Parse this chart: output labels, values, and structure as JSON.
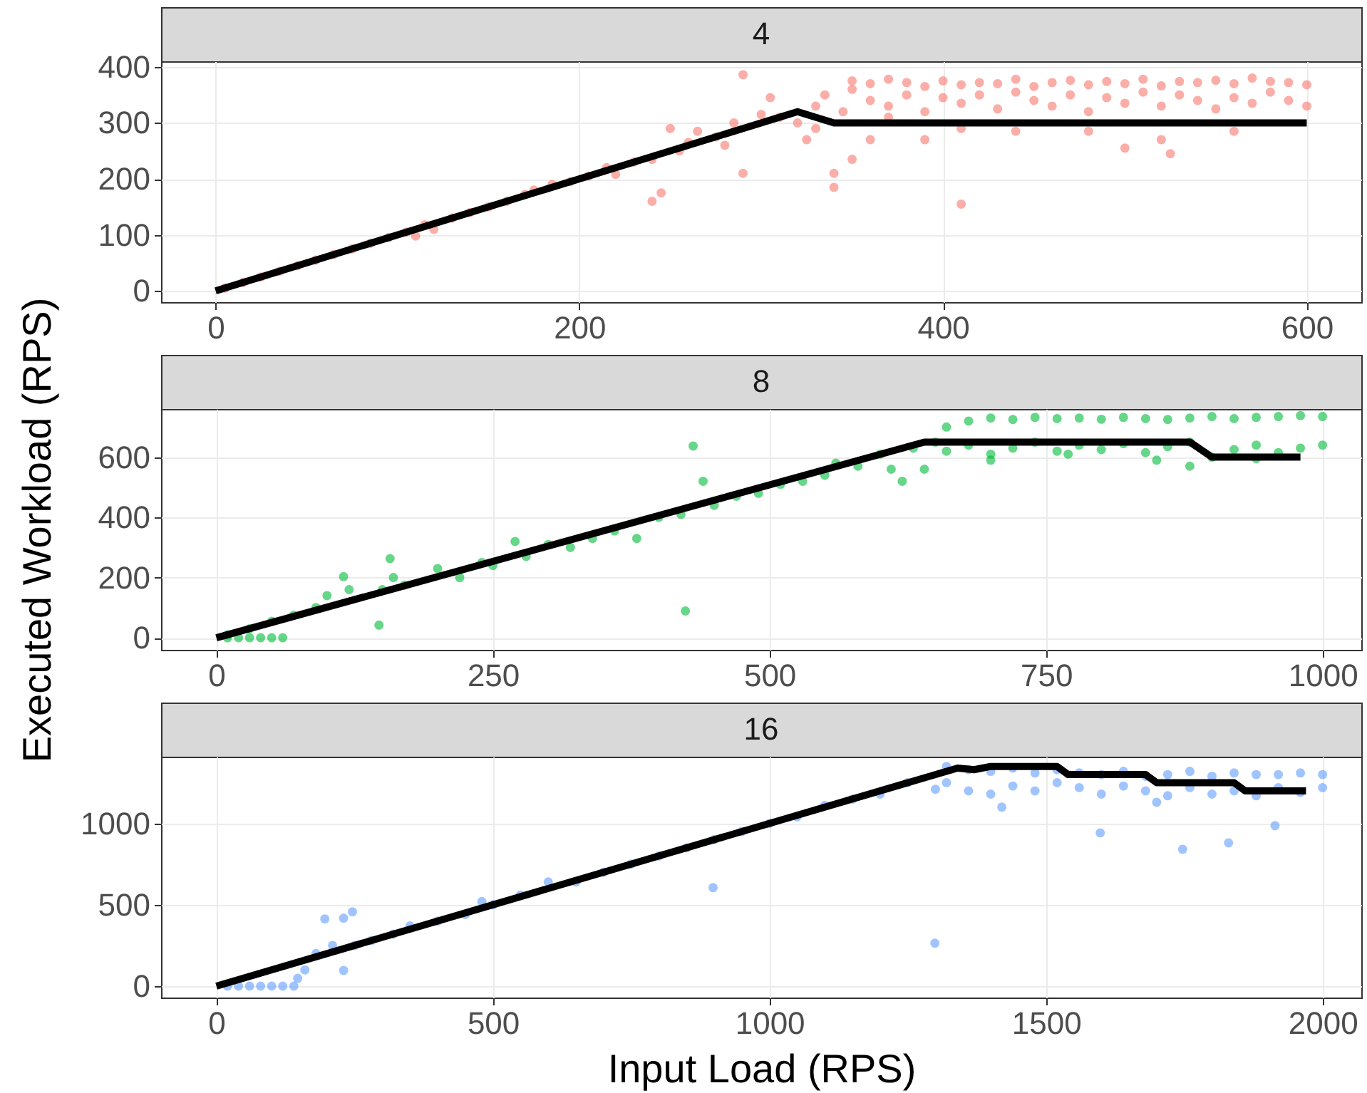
{
  "chart_data": [
    {
      "type": "scatter",
      "title": "4",
      "xlim": [
        -30,
        630
      ],
      "ylim": [
        -20,
        410
      ],
      "xticks": [
        0,
        200,
        400,
        600
      ],
      "yticks": [
        0,
        100,
        200,
        300,
        400
      ],
      "grid": true,
      "marker": "circle",
      "series": [
        {
          "type": "scatter",
          "color": "#f8766d",
          "x": [
            5,
            15,
            25,
            35,
            45,
            55,
            65,
            75,
            85,
            95,
            105,
            110,
            115,
            120,
            130,
            140,
            150,
            160,
            170,
            175,
            185,
            195,
            205,
            215,
            220,
            230,
            240,
            240,
            245,
            250,
            255,
            260,
            265,
            275,
            280,
            285,
            290,
            290,
            300,
            305,
            310,
            320,
            325,
            330,
            330,
            335,
            340,
            340,
            345,
            350,
            350,
            360,
            360,
            370,
            370,
            380,
            380,
            390,
            390,
            400,
            400,
            410,
            410,
            420,
            420,
            430,
            430,
            440,
            440,
            450,
            450,
            460,
            460,
            470,
            470,
            480,
            480,
            490,
            490,
            500,
            500,
            510,
            510,
            520,
            520,
            530,
            530,
            540,
            540,
            550,
            550,
            560,
            560,
            570,
            570,
            580,
            580,
            590,
            590,
            600,
            600,
            350,
            360,
            370,
            390,
            410,
            410,
            440,
            480,
            500,
            520,
            525,
            560
          ],
          "values": [
            5,
            15,
            25,
            35,
            45,
            55,
            65,
            75,
            85,
            95,
            105,
            98,
            118,
            110,
            130,
            140,
            150,
            160,
            172,
            180,
            190,
            195,
            205,
            220,
            208,
            230,
            235,
            160,
            175,
            290,
            250,
            265,
            285,
            275,
            260,
            300,
            386,
            210,
            315,
            345,
            310,
            300,
            270,
            330,
            290,
            350,
            210,
            185,
            320,
            360,
            375,
            340,
            370,
            330,
            378,
            350,
            372,
            320,
            365,
            345,
            375,
            335,
            368,
            350,
            372,
            325,
            370,
            355,
            378,
            340,
            365,
            330,
            372,
            350,
            376,
            320,
            368,
            345,
            374,
            335,
            370,
            355,
            378,
            330,
            366,
            350,
            374,
            340,
            372,
            325,
            376,
            345,
            370,
            335,
            380,
            355,
            374,
            340,
            372,
            330,
            368,
            235,
            270,
            310,
            270,
            155,
            290,
            285,
            285,
            255,
            270,
            245,
            285
          ]
        },
        {
          "type": "line",
          "color": "#000000",
          "marker": "none",
          "x": [
            0,
            320,
            340,
            600
          ],
          "values": [
            0,
            320,
            300,
            300
          ]
        }
      ]
    },
    {
      "type": "scatter",
      "title": "8",
      "ylabel": "Executed Workload (RPS)",
      "xlim": [
        -50,
        1035
      ],
      "ylim": [
        -40,
        760
      ],
      "xticks": [
        0,
        250,
        500,
        750,
        1000
      ],
      "yticks": [
        0,
        200,
        400,
        600
      ],
      "grid": true,
      "marker": "circle",
      "series": [
        {
          "type": "scatter",
          "color": "#00ba38",
          "x": [
            10,
            20,
            30,
            40,
            50,
            60,
            10,
            30,
            50,
            70,
            90,
            100,
            115,
            120,
            147,
            150,
            157,
            160,
            170,
            200,
            220,
            240,
            250,
            270,
            280,
            300,
            320,
            340,
            360,
            380,
            400,
            420,
            424,
            431,
            440,
            450,
            470,
            490,
            510,
            530,
            550,
            560,
            580,
            600,
            610,
            620,
            630,
            640,
            650,
            660,
            660,
            680,
            680,
            700,
            700,
            720,
            720,
            740,
            740,
            760,
            760,
            780,
            780,
            800,
            800,
            820,
            820,
            840,
            840,
            860,
            860,
            880,
            880,
            900,
            900,
            920,
            920,
            940,
            940,
            960,
            960,
            980,
            980,
            1000,
            1000,
            700,
            770,
            850,
            880,
            940
          ],
          "values": [
            0,
            0,
            0,
            0,
            0,
            0,
            10,
            30,
            55,
            75,
            100,
            140,
            203,
            160,
            42,
            160,
            263,
            200,
            175,
            230,
            200,
            250,
            240,
            320,
            270,
            310,
            300,
            330,
            355,
            330,
            400,
            410,
            89,
            637,
            520,
            440,
            470,
            480,
            510,
            520,
            540,
            580,
            570,
            610,
            560,
            520,
            630,
            560,
            650,
            620,
            700,
            640,
            720,
            610,
            730,
            630,
            725,
            650,
            732,
            620,
            728,
            640,
            730,
            625,
            726,
            645,
            732,
            615,
            728,
            635,
            725,
            650,
            730,
            600,
            735,
            625,
            728,
            640,
            732,
            615,
            735,
            630,
            738,
            640,
            735,
            590,
            610,
            590,
            570,
            595
          ]
        },
        {
          "type": "line",
          "color": "#000000",
          "marker": "none",
          "x": [
            0,
            640,
            660,
            880,
            900,
            980
          ],
          "values": [
            0,
            650,
            650,
            650,
            600,
            600
          ]
        }
      ]
    },
    {
      "type": "scatter",
      "title": "16",
      "xlabel": "Input Load (RPS)",
      "xlim": [
        -100,
        2070
      ],
      "ylim": [
        -70,
        1410
      ],
      "xticks": [
        0,
        500,
        1000,
        1500,
        2000
      ],
      "yticks": [
        0,
        500,
        1000
      ],
      "grid": true,
      "marker": "circle",
      "series": [
        {
          "type": "scatter",
          "color": "#619cff",
          "x": [
            20,
            40,
            60,
            80,
            100,
            120,
            140,
            147,
            160,
            180,
            196,
            210,
            230,
            230,
            246,
            250,
            280,
            320,
            350,
            400,
            450,
            480,
            500,
            550,
            600,
            650,
            700,
            750,
            800,
            850,
            898,
            900,
            950,
            1000,
            1050,
            1100,
            1150,
            1200,
            1250,
            1299,
            1300,
            1320,
            1320,
            1360,
            1360,
            1400,
            1400,
            1440,
            1440,
            1480,
            1480,
            1520,
            1520,
            1560,
            1560,
            1600,
            1600,
            1640,
            1640,
            1680,
            1680,
            1720,
            1720,
            1760,
            1760,
            1800,
            1800,
            1840,
            1840,
            1880,
            1880,
            1920,
            1920,
            1960,
            1960,
            2000,
            2000,
            1598,
            1747,
            1830,
            1914,
            1420,
            1700
          ],
          "values": [
            0,
            0,
            0,
            0,
            0,
            0,
            0,
            48,
            100,
            200,
            413,
            250,
            418,
            96,
            457,
            250,
            280,
            320,
            370,
            400,
            440,
            520,
            500,
            560,
            640,
            640,
            700,
            750,
            800,
            850,
            605,
            900,
            950,
            1000,
            1040,
            1110,
            1150,
            1180,
            1250,
            264,
            1210,
            1250,
            1350,
            1200,
            1330,
            1180,
            1320,
            1230,
            1340,
            1200,
            1310,
            1250,
            1330,
            1220,
            1310,
            1180,
            1300,
            1230,
            1320,
            1200,
            1290,
            1170,
            1300,
            1220,
            1320,
            1180,
            1290,
            1200,
            1310,
            1170,
            1300,
            1220,
            1300,
            1190,
            1310,
            1220,
            1300,
            942,
            841,
            880,
            986,
            1100,
            1130
          ]
        },
        {
          "type": "line",
          "color": "#000000",
          "marker": "none",
          "x": [
            0,
            1340,
            1370,
            1400,
            1520,
            1540,
            1680,
            1700,
            1840,
            1860,
            1970
          ],
          "values": [
            0,
            1340,
            1330,
            1350,
            1350,
            1300,
            1300,
            1250,
            1250,
            1200,
            1200
          ]
        }
      ]
    }
  ]
}
